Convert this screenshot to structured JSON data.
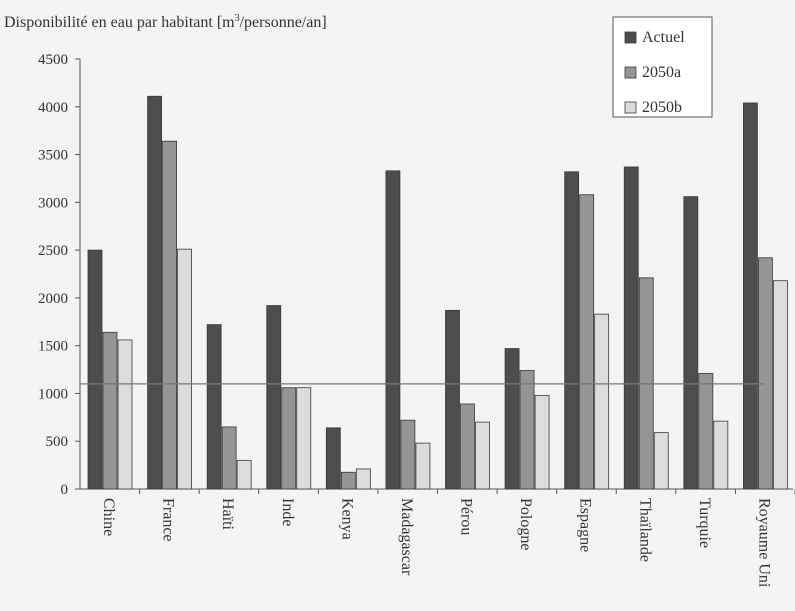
{
  "chart_data": {
    "type": "bar",
    "title_prefix": "Disponibilité en eau par habitant [m",
    "title_sup": "3",
    "title_suffix": "/personne/an]",
    "ylim": [
      0,
      4500
    ],
    "yticks": [
      0,
      500,
      1000,
      1500,
      2000,
      2500,
      3000,
      3500,
      4000,
      4500
    ],
    "grid": false,
    "reference_line": 1100,
    "legend_position": "top-right",
    "categories": [
      "Chine",
      "France",
      "Haïti",
      "Inde",
      "Kenya",
      "Madagascar",
      "Pérou",
      "Pologne",
      "Espagne",
      "Thaïlande",
      "Turquie",
      "Royaume Uni"
    ],
    "series": [
      {
        "name": "Actuel",
        "color": "#4d4d4d",
        "values": [
          2500,
          4110,
          1720,
          1920,
          640,
          3330,
          1870,
          1470,
          3320,
          3370,
          3060,
          4040
        ]
      },
      {
        "name": "2050a",
        "color": "#959595",
        "values": [
          1640,
          3640,
          650,
          1060,
          175,
          720,
          890,
          1240,
          3080,
          2210,
          1210,
          2420
        ]
      },
      {
        "name": "2050b",
        "color": "#dcdcdc",
        "values": [
          1560,
          2510,
          300,
          1060,
          210,
          480,
          700,
          980,
          1830,
          590,
          710,
          2180
        ]
      }
    ]
  }
}
